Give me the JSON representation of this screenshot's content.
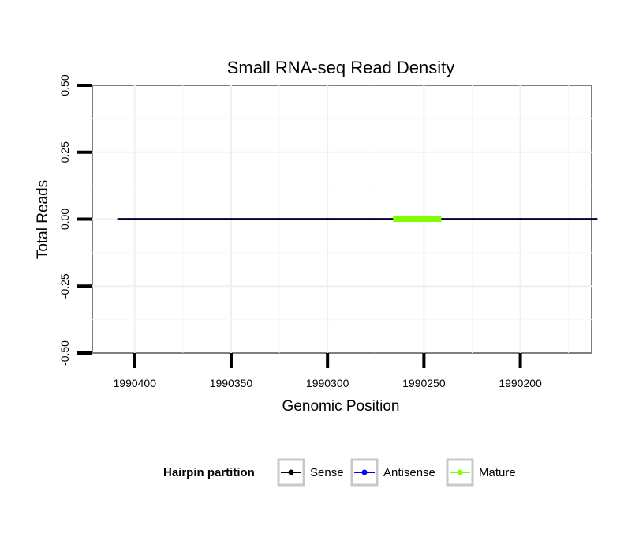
{
  "chart_data": {
    "type": "line",
    "title": "Small RNA-seq Read Density",
    "xlabel": "Genomic Position",
    "ylabel": "Total Reads",
    "x_reversed": true,
    "xlim": [
      1990422,
      1990163
    ],
    "ylim": [
      -0.5,
      0.5
    ],
    "x_ticks": [
      1990400,
      1990350,
      1990300,
      1990250,
      1990200
    ],
    "x_tick_labels": [
      "1990400",
      "1990350",
      "1990300",
      "1990250",
      "1990200"
    ],
    "y_ticks": [
      0.5,
      0.25,
      0,
      -0.25,
      -0.5
    ],
    "y_tick_labels": [
      "0.50",
      "0.25",
      "0.00",
      "-0.25",
      "-0.50"
    ],
    "grid": true,
    "series": [
      {
        "name": "Sense",
        "color": "#000000",
        "x": [
          1990409,
          1990160
        ],
        "y": [
          0,
          0
        ]
      },
      {
        "name": "Antisense",
        "color": "#0000ff",
        "x": [
          1990409,
          1990160
        ],
        "y": [
          0,
          0
        ]
      },
      {
        "name": "Mature",
        "color": "#80ff00",
        "x": [
          1990266,
          1990241
        ],
        "y": [
          0,
          0
        ]
      }
    ],
    "legend": {
      "title": "Hairpin partition",
      "position": "bottom",
      "entries": [
        {
          "label": "Sense",
          "color": "#000000"
        },
        {
          "label": "Antisense",
          "color": "#0000ff"
        },
        {
          "label": "Mature",
          "color": "#80ff00"
        }
      ]
    }
  }
}
